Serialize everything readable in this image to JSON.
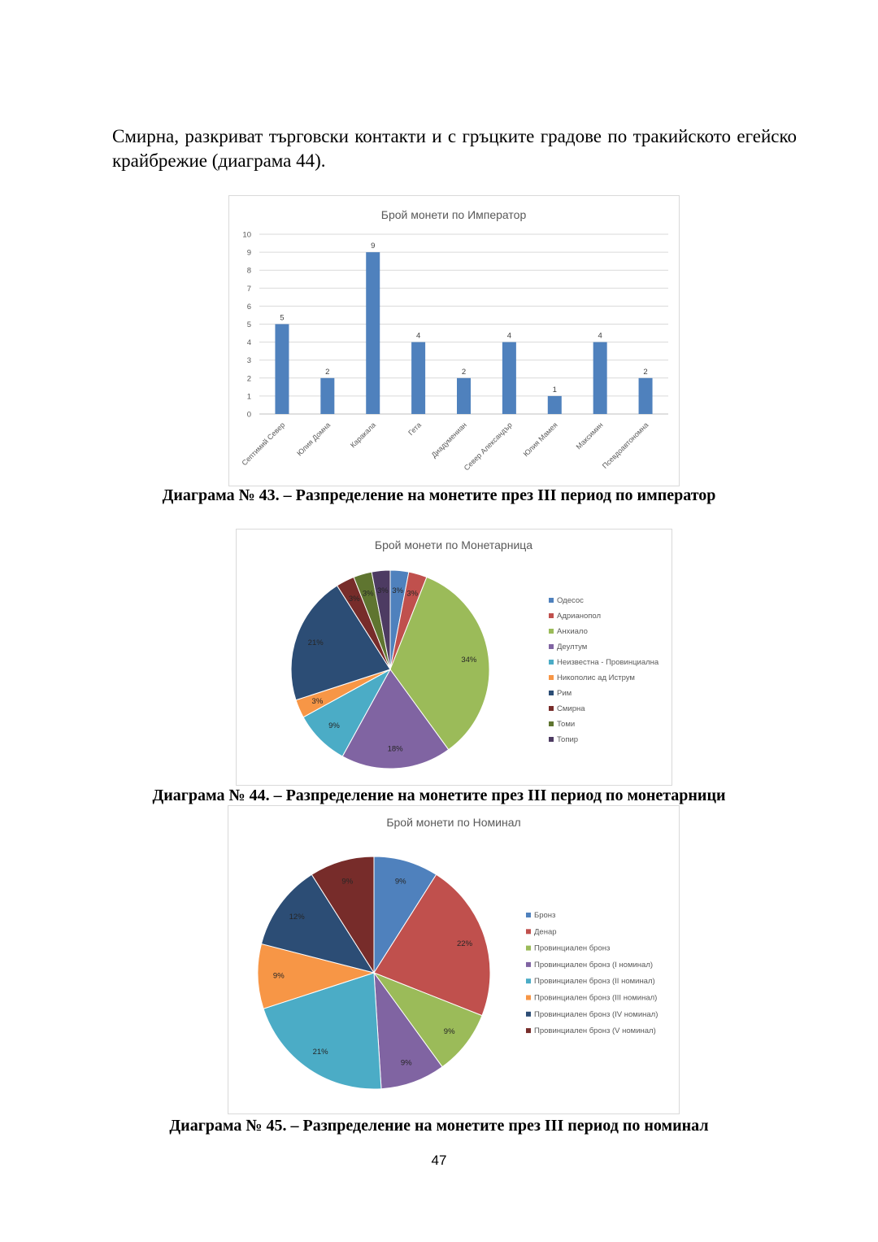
{
  "paragraph": "Смирна, разкриват търговски контакти и с гръцките градове по тракийското егейско крайбрежие (диаграма 44).",
  "captions": {
    "c43_num": "Диаграма № 43",
    "c43_rest": ". – Разпределение на монетите през III период по император",
    "c44": "Диаграма № 44. – Разпределение на монетите през III период по монетарници",
    "c45": "Диаграма № 45. – Разпределение на монетите през III период по номинал"
  },
  "page_number": "47",
  "chart_data": [
    {
      "type": "bar",
      "title": "Брой монети по Император",
      "categories": [
        "Септимий Север",
        "Юлия Домна",
        "Каракала",
        "Гета",
        "Диадумениан",
        "Север Александър",
        "Юлия Мамея",
        "Максимин",
        "Псевдоавтономна"
      ],
      "values": [
        5,
        2,
        9,
        4,
        2,
        4,
        1,
        4,
        2
      ],
      "ylim": [
        0,
        10
      ],
      "yticks": [
        0,
        1,
        2,
        3,
        4,
        5,
        6,
        7,
        8,
        9,
        10
      ],
      "grid": true,
      "color": "#4f81bd",
      "data_labels": true
    },
    {
      "type": "pie",
      "title": "Брой монети по Монетарница",
      "labels": [
        "Одесос",
        "Адрианопол",
        "Анхиало",
        "Деултум",
        "Неизвестна - Провинциална",
        "Никополис ад Иструм",
        "Рим",
        "Смирна",
        "Томи",
        "Топир"
      ],
      "values": [
        3,
        3,
        34,
        18,
        9,
        3,
        21,
        3,
        3,
        3
      ],
      "value_labels": [
        "3%",
        "3%",
        "34%",
        "18%",
        "9%",
        "3%",
        "21%",
        "3%",
        "3%",
        "3%"
      ],
      "colors": [
        "#4f81bd",
        "#c0504d",
        "#9bbb59",
        "#8064a2",
        "#4bacc6",
        "#f79646",
        "#2c4d75",
        "#772c2a",
        "#5f7530",
        "#4d3b62"
      ],
      "legend": "right"
    },
    {
      "type": "pie",
      "title": "Брой монети по Номинал",
      "labels": [
        "Бронз",
        "Денар",
        "Провинциален бронз",
        "Провинциален бронз (I номинал)",
        "Провинциален бронз (II номинал)",
        "Провинциален бронз (III номинал)",
        "Провинциален бронз (IV номинал)",
        "Провинциален бронз (V номинал)"
      ],
      "values": [
        9,
        22,
        9,
        9,
        21,
        9,
        12,
        9
      ],
      "value_labels": [
        "9%",
        "22%",
        "9%",
        "9%",
        "21%",
        "9%",
        "12%",
        "9%"
      ],
      "colors": [
        "#4f81bd",
        "#c0504d",
        "#9bbb59",
        "#8064a2",
        "#4bacc6",
        "#f79646",
        "#2c4d75",
        "#772c2a"
      ],
      "legend": "right"
    }
  ]
}
